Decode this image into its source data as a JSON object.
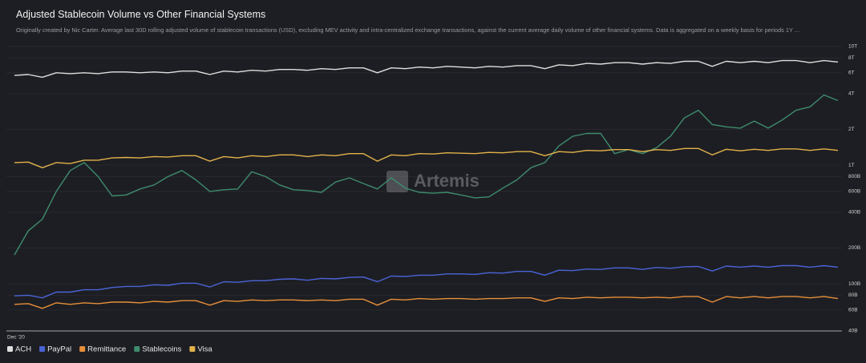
{
  "chart_data": {
    "type": "line",
    "title": "Adjusted Stablecoin Volume vs Other Financial Systems",
    "subtitle": "Originally created by Nic Carter. Average last 30D rolling adjusted volume of stablecoin transactions (USD), excluding MEV activity and intra-centralized exchange transactions, against the current average daily volume of other financial systems. Data is aggregated on a weekly basis for periods 1Y ...",
    "watermark": "Artemis",
    "log_scale": true,
    "grid": true,
    "legend": "bottom-left",
    "categories": [
      "Dec '20",
      null,
      null,
      null,
      null,
      null,
      null,
      null,
      null,
      null,
      null,
      null,
      null,
      null,
      null,
      null,
      null,
      null,
      null,
      null,
      null,
      null,
      null,
      null,
      null,
      null,
      null,
      null,
      null,
      null,
      null,
      null,
      null,
      null,
      null,
      null,
      null,
      null,
      null,
      null,
      null,
      null,
      null,
      null,
      null,
      null,
      null,
      null,
      null,
      null,
      null,
      null,
      null,
      null,
      null,
      null,
      null,
      null,
      null,
      null
    ],
    "ylim": [
      40000000000.0,
      10000000000000.0
    ],
    "yticks": [
      {
        "value": 10000000000000.0,
        "label": "10T"
      },
      {
        "value": 8000000000000.0,
        "label": "8T"
      },
      {
        "value": 6000000000000.0,
        "label": "6T"
      },
      {
        "value": 4000000000000.0,
        "label": "4T"
      },
      {
        "value": 2000000000000.0,
        "label": "2T"
      },
      {
        "value": 1000000000000.0,
        "label": "1T"
      },
      {
        "value": 800000000000.0,
        "label": "800B"
      },
      {
        "value": 600000000000.0,
        "label": "600B"
      },
      {
        "value": 400000000000.0,
        "label": "400B"
      },
      {
        "value": 200000000000.0,
        "label": "200B"
      },
      {
        "value": 100000000000.0,
        "label": "100B"
      },
      {
        "value": 80000000000.0,
        "label": "80B"
      },
      {
        "value": 60000000000.0,
        "label": "60B"
      },
      {
        "value": 40000000000.0,
        "label": "40B"
      }
    ],
    "series": [
      {
        "name": "ACH",
        "color": "#dedede",
        "values": [
          5700000000000.0,
          5800000000000.0,
          5500000000000.0,
          6000000000000.0,
          5900000000000.0,
          6000000000000.0,
          5900000000000.0,
          6100000000000.0,
          6100000000000.0,
          6000000000000.0,
          6100000000000.0,
          6000000000000.0,
          6200000000000.0,
          6200000000000.0,
          5800000000000.0,
          6200000000000.0,
          6100000000000.0,
          6300000000000.0,
          6200000000000.0,
          6400000000000.0,
          6400000000000.0,
          6300000000000.0,
          6500000000000.0,
          6400000000000.0,
          6600000000000.0,
          6600000000000.0,
          6000000000000.0,
          6600000000000.0,
          6500000000000.0,
          6700000000000.0,
          6600000000000.0,
          6800000000000.0,
          6700000000000.0,
          6600000000000.0,
          6800000000000.0,
          6700000000000.0,
          6900000000000.0,
          6900000000000.0,
          6500000000000.0,
          7000000000000.0,
          6900000000000.0,
          7200000000000.0,
          7100000000000.0,
          7300000000000.0,
          7300000000000.0,
          7100000000000.0,
          7300000000000.0,
          7200000000000.0,
          7500000000000.0,
          7500000000000.0,
          6800000000000.0,
          7500000000000.0,
          7300000000000.0,
          7500000000000.0,
          7300000000000.0,
          7600000000000.0,
          7600000000000.0,
          7300000000000.0,
          7600000000000.0,
          7400000000000.0
        ]
      },
      {
        "name": "PayPal",
        "color": "#4a64d8",
        "values": [
          79000000000.0,
          80000000000.0,
          76000000000.0,
          85000000000.0,
          85000000000.0,
          89000000000.0,
          89000000000.0,
          93000000000.0,
          95000000000.0,
          95000000000.0,
          98000000000.0,
          97000000000.0,
          101000000000.0,
          101000000000.0,
          94000000000.0,
          104000000000.0,
          103000000000.0,
          106000000000.0,
          106000000000.0,
          109000000000.0,
          110000000000.0,
          107000000000.0,
          111000000000.0,
          110000000000.0,
          113000000000.0,
          114000000000.0,
          104000000000.0,
          116000000000.0,
          115000000000.0,
          118000000000.0,
          118000000000.0,
          121000000000.0,
          121000000000.0,
          120000000000.0,
          124000000000.0,
          123000000000.0,
          127000000000.0,
          127000000000.0,
          118000000000.0,
          130000000000.0,
          129000000000.0,
          133000000000.0,
          132000000000.0,
          136000000000.0,
          136000000000.0,
          132000000000.0,
          137000000000.0,
          135000000000.0,
          139000000000.0,
          140000000000.0,
          128000000000.0,
          141000000000.0,
          138000000000.0,
          141000000000.0,
          138000000000.0,
          142000000000.0,
          142000000000.0,
          138000000000.0,
          142000000000.0,
          138000000000.0
        ]
      },
      {
        "name": "Remittance",
        "color": "#e88f3a",
        "values": [
          67000000000.0,
          68000000000.0,
          62000000000.0,
          69000000000.0,
          67000000000.0,
          69000000000.0,
          68000000000.0,
          70000000000.0,
          70000000000.0,
          69000000000.0,
          71000000000.0,
          70000000000.0,
          72000000000.0,
          72000000000.0,
          66000000000.0,
          72000000000.0,
          71000000000.0,
          73000000000.0,
          72000000000.0,
          73000000000.0,
          73000000000.0,
          72000000000.0,
          73000000000.0,
          72000000000.0,
          74000000000.0,
          74000000000.0,
          66000000000.0,
          74000000000.0,
          73000000000.0,
          75000000000.0,
          74000000000.0,
          75000000000.0,
          75000000000.0,
          74000000000.0,
          75000000000.0,
          75000000000.0,
          76000000000.0,
          76000000000.0,
          71000000000.0,
          76000000000.0,
          75000000000.0,
          77000000000.0,
          76000000000.0,
          77000000000.0,
          77000000000.0,
          76000000000.0,
          77000000000.0,
          76000000000.0,
          78000000000.0,
          78000000000.0,
          70000000000.0,
          78000000000.0,
          76000000000.0,
          78000000000.0,
          76000000000.0,
          78000000000.0,
          78000000000.0,
          76000000000.0,
          78000000000.0,
          75000000000.0
        ]
      },
      {
        "name": "Stablecoins",
        "color": "#3e8c6d",
        "values": [
          175000000000.0,
          280000000000.0,
          350000000000.0,
          600000000000.0,
          900000000000.0,
          1050000000000.0,
          800000000000.0,
          550000000000.0,
          560000000000.0,
          630000000000.0,
          680000000000.0,
          800000000000.0,
          900000000000.0,
          750000000000.0,
          600000000000.0,
          620000000000.0,
          630000000000.0,
          880000000000.0,
          800000000000.0,
          680000000000.0,
          620000000000.0,
          610000000000.0,
          590000000000.0,
          720000000000.0,
          780000000000.0,
          700000000000.0,
          630000000000.0,
          780000000000.0,
          640000000000.0,
          590000000000.0,
          580000000000.0,
          590000000000.0,
          560000000000.0,
          530000000000.0,
          540000000000.0,
          640000000000.0,
          750000000000.0,
          950000000000.0,
          1050000000000.0,
          1450000000000.0,
          1750000000000.0,
          1850000000000.0,
          1850000000000.0,
          1250000000000.0,
          1350000000000.0,
          1250000000000.0,
          1400000000000.0,
          1750000000000.0,
          2500000000000.0,
          2900000000000.0,
          2200000000000.0,
          2100000000000.0,
          2050000000000.0,
          2350000000000.0,
          2050000000000.0,
          2400000000000.0,
          2900000000000.0,
          3100000000000.0,
          3900000000000.0,
          3500000000000.0
        ]
      },
      {
        "name": "Visa",
        "color": "#e2b24a",
        "values": [
          1050000000000.0,
          1060000000000.0,
          950000000000.0,
          1050000000000.0,
          1030000000000.0,
          1100000000000.0,
          1100000000000.0,
          1150000000000.0,
          1160000000000.0,
          1150000000000.0,
          1180000000000.0,
          1170000000000.0,
          1200000000000.0,
          1200000000000.0,
          1080000000000.0,
          1180000000000.0,
          1150000000000.0,
          1200000000000.0,
          1180000000000.0,
          1220000000000.0,
          1220000000000.0,
          1180000000000.0,
          1220000000000.0,
          1200000000000.0,
          1250000000000.0,
          1250000000000.0,
          1080000000000.0,
          1220000000000.0,
          1200000000000.0,
          1250000000000.0,
          1240000000000.0,
          1270000000000.0,
          1260000000000.0,
          1250000000000.0,
          1280000000000.0,
          1270000000000.0,
          1300000000000.0,
          1300000000000.0,
          1200000000000.0,
          1300000000000.0,
          1280000000000.0,
          1330000000000.0,
          1320000000000.0,
          1350000000000.0,
          1350000000000.0,
          1300000000000.0,
          1350000000000.0,
          1330000000000.0,
          1380000000000.0,
          1380000000000.0,
          1220000000000.0,
          1360000000000.0,
          1320000000000.0,
          1360000000000.0,
          1330000000000.0,
          1370000000000.0,
          1370000000000.0,
          1330000000000.0,
          1370000000000.0,
          1330000000000.0
        ]
      }
    ]
  }
}
